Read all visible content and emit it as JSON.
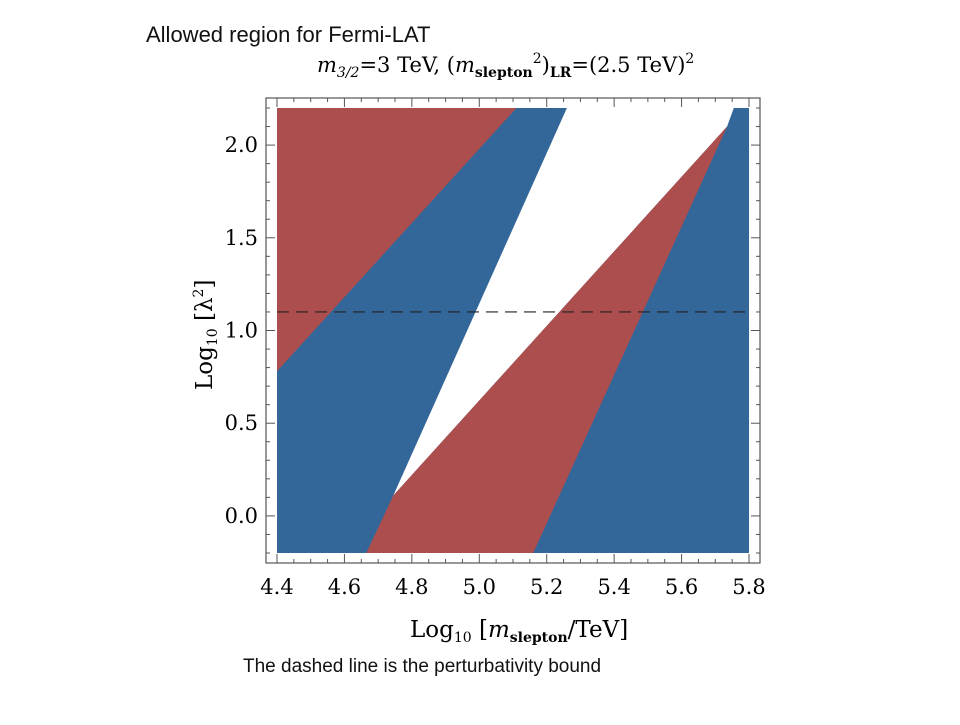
{
  "slide": {
    "title": "Allowed region for Fermi-LAT",
    "caption": "The dashed line is the perturbativity bound"
  },
  "chart_data": {
    "type": "region",
    "title": "m3/2=3 TeV, (mslepton2)LR=(2.5 TeV)2",
    "title_parts": {
      "m_sym": "m",
      "m_sub": "3/2",
      "eq1": "=3 TeV, (",
      "m2_sym": "m",
      "slepton_sub": "slepton",
      "sup2": "2",
      "close": ")",
      "lr_sub": "LR",
      "eq2": "=(2.5 TeV)",
      "sup2b": "2"
    },
    "xlabel": "Log10 [mslepton/TeV]",
    "xlabel_parts": {
      "log": "Log",
      "sub10": "10",
      "open": " [",
      "m_sym": "m",
      "slepton_sub": "slepton",
      "rest": "/TeV]"
    },
    "ylabel": "Log10 [λ2]",
    "ylabel_parts": {
      "log": "Log",
      "sub10": "10",
      "open": " [",
      "lambda": "λ",
      "sup2": "2",
      "close": "]"
    },
    "xlim": [
      4.4,
      5.8
    ],
    "ylim": [
      -0.2,
      2.2
    ],
    "xticks": [
      "4.4",
      "4.6",
      "4.8",
      "5.0",
      "5.2",
      "5.4",
      "5.6",
      "5.8"
    ],
    "xtick_values": [
      4.4,
      4.6,
      4.8,
      5.0,
      5.2,
      5.4,
      5.6,
      5.8
    ],
    "yticks": [
      "0.0",
      "0.5",
      "1.0",
      "1.5",
      "2.0"
    ],
    "ytick_values": [
      0.0,
      0.5,
      1.0,
      1.5,
      2.0
    ],
    "colors": {
      "red": "#ad4e4e",
      "blue": "#336699",
      "white": "#ffffff",
      "frame": "#555555"
    },
    "regions": [
      {
        "name": "blue-background",
        "color": "blue",
        "points": [
          [
            4.4,
            -0.2
          ],
          [
            5.8,
            -0.2
          ],
          [
            5.8,
            2.2
          ],
          [
            4.4,
            2.2
          ]
        ]
      },
      {
        "name": "red-upper-left",
        "color": "red",
        "points": [
          [
            4.4,
            0.78
          ],
          [
            5.11,
            2.2
          ],
          [
            4.4,
            2.2
          ]
        ]
      },
      {
        "name": "white-allowed",
        "color": "white",
        "points": [
          [
            4.745,
            0.11
          ],
          [
            5.26,
            2.2
          ],
          [
            5.755,
            2.2
          ],
          [
            5.735,
            2.1
          ]
        ]
      },
      {
        "name": "red-middle",
        "color": "red",
        "points": [
          [
            4.665,
            -0.2
          ],
          [
            4.745,
            0.11
          ],
          [
            5.735,
            2.1
          ],
          [
            5.16,
            -0.2
          ]
        ]
      }
    ],
    "dashed_line": {
      "y": 1.1,
      "label": "perturbativity bound"
    }
  }
}
